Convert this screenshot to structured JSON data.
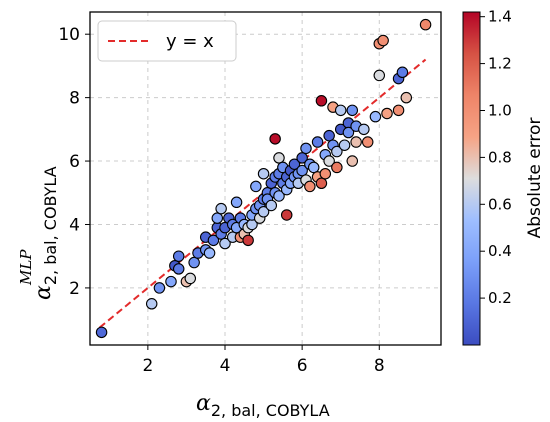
{
  "chart_data": {
    "type": "scatter",
    "xlim": [
      0.5,
      9.6
    ],
    "ylim": [
      0.2,
      10.7
    ],
    "x_ticks": [
      "2",
      "4",
      "6",
      "8"
    ],
    "y_ticks": [
      "2",
      "4",
      "6",
      "8",
      "10"
    ],
    "x_tick_values": [
      2,
      4,
      6,
      8
    ],
    "y_tick_values": [
      2,
      4,
      6,
      8,
      10
    ],
    "xlabel_main": "α",
    "xlabel_sub": "2, bal, COBYLA",
    "ylabel_main": "α",
    "ylabel_sub": "2, bal, COBYLA",
    "ylabel_sup": "MLP",
    "grid": true,
    "legend": {
      "placement": "top-left",
      "label": "y = x",
      "style": "red-dashed"
    },
    "reference_line": {
      "x": [
        0.75,
        9.2
      ],
      "y": [
        0.75,
        9.2
      ]
    },
    "colorbar": {
      "label": "Absolute error",
      "range": [
        0.0,
        1.42
      ],
      "ticks": [
        "0.2",
        "0.4",
        "0.6",
        "0.8",
        "1.0",
        "1.2",
        "1.4"
      ],
      "tick_values": [
        0.2,
        0.4,
        0.6,
        0.8,
        1.0,
        1.2,
        1.4
      ],
      "colormap": "coolwarm"
    },
    "points": [
      [
        0.8,
        0.6,
        0.12
      ],
      [
        2.1,
        1.5,
        0.6
      ],
      [
        2.3,
        2.0,
        0.3
      ],
      [
        2.6,
        2.2,
        0.4
      ],
      [
        2.7,
        2.7,
        0.05
      ],
      [
        2.8,
        3.0,
        0.2
      ],
      [
        2.8,
        2.6,
        0.2
      ],
      [
        3.0,
        2.2,
        0.8
      ],
      [
        3.1,
        2.3,
        0.7
      ],
      [
        3.2,
        2.8,
        0.3
      ],
      [
        3.3,
        3.1,
        0.2
      ],
      [
        3.5,
        3.2,
        0.3
      ],
      [
        3.6,
        3.1,
        0.5
      ],
      [
        3.5,
        3.6,
        0.1
      ],
      [
        3.7,
        3.5,
        0.2
      ],
      [
        3.8,
        3.9,
        0.1
      ],
      [
        3.8,
        4.2,
        0.4
      ],
      [
        3.9,
        3.7,
        0.2
      ],
      [
        3.9,
        4.5,
        0.6
      ],
      [
        4.0,
        3.9,
        0.1
      ],
      [
        4.0,
        3.4,
        0.6
      ],
      [
        4.1,
        4.2,
        0.1
      ],
      [
        4.2,
        3.6,
        0.6
      ],
      [
        4.2,
        4.0,
        0.2
      ],
      [
        4.3,
        4.7,
        0.4
      ],
      [
        4.3,
        3.9,
        0.4
      ],
      [
        4.4,
        3.6,
        1.0
      ],
      [
        4.4,
        4.2,
        0.2
      ],
      [
        4.5,
        3.7,
        0.8
      ],
      [
        4.5,
        4.0,
        0.5
      ],
      [
        4.6,
        3.9,
        0.7
      ],
      [
        4.6,
        3.5,
        1.3
      ],
      [
        4.7,
        4.0,
        0.6
      ],
      [
        4.7,
        4.3,
        0.4
      ],
      [
        4.8,
        4.5,
        0.3
      ],
      [
        4.8,
        5.2,
        0.4
      ],
      [
        4.9,
        4.6,
        0.3
      ],
      [
        4.9,
        4.2,
        0.7
      ],
      [
        5.0,
        4.8,
        0.2
      ],
      [
        5.0,
        5.6,
        0.6
      ],
      [
        5.0,
        4.4,
        0.6
      ],
      [
        5.1,
        5.0,
        0.2
      ],
      [
        5.1,
        4.8,
        0.3
      ],
      [
        5.2,
        5.3,
        0.1
      ],
      [
        5.2,
        4.6,
        0.6
      ],
      [
        5.3,
        6.7,
        1.4
      ],
      [
        5.3,
        5.0,
        0.3
      ],
      [
        5.3,
        5.5,
        0.2
      ],
      [
        5.4,
        5.6,
        0.2
      ],
      [
        5.4,
        4.9,
        0.5
      ],
      [
        5.4,
        6.1,
        0.7
      ],
      [
        5.5,
        5.3,
        0.2
      ],
      [
        5.5,
        5.8,
        0.3
      ],
      [
        5.6,
        5.5,
        0.1
      ],
      [
        5.6,
        5.1,
        0.5
      ],
      [
        5.6,
        4.3,
        1.3
      ],
      [
        5.7,
        5.7,
        0.05
      ],
      [
        5.7,
        5.3,
        0.4
      ],
      [
        5.8,
        5.5,
        0.3
      ],
      [
        5.8,
        5.9,
        0.1
      ],
      [
        5.9,
        5.6,
        0.3
      ],
      [
        5.9,
        5.3,
        0.6
      ],
      [
        6.0,
        6.1,
        0.1
      ],
      [
        6.0,
        5.7,
        0.3
      ],
      [
        6.1,
        5.4,
        0.7
      ],
      [
        6.1,
        6.4,
        0.3
      ],
      [
        6.2,
        5.9,
        0.3
      ],
      [
        6.2,
        5.2,
        1.0
      ],
      [
        6.3,
        5.8,
        0.5
      ],
      [
        6.4,
        5.5,
        0.9
      ],
      [
        6.4,
        6.6,
        0.2
      ],
      [
        6.5,
        5.3,
        1.2
      ],
      [
        6.5,
        7.9,
        1.4
      ],
      [
        6.6,
        6.2,
        0.4
      ],
      [
        6.6,
        5.6,
        1.0
      ],
      [
        6.7,
        6.0,
        0.7
      ],
      [
        6.7,
        6.8,
        0.1
      ],
      [
        6.8,
        6.5,
        0.3
      ],
      [
        6.8,
        7.7,
        0.9
      ],
      [
        6.9,
        5.8,
        1.1
      ],
      [
        6.9,
        6.3,
        0.6
      ],
      [
        7.0,
        7.0,
        0.05
      ],
      [
        7.0,
        7.6,
        0.6
      ],
      [
        7.1,
        6.5,
        0.6
      ],
      [
        7.2,
        7.2,
        0.1
      ],
      [
        7.2,
        6.9,
        0.3
      ],
      [
        7.3,
        7.6,
        0.3
      ],
      [
        7.3,
        6.0,
        0.8
      ],
      [
        7.4,
        6.6,
        0.8
      ],
      [
        7.4,
        7.1,
        0.3
      ],
      [
        7.6,
        7.0,
        0.6
      ],
      [
        7.7,
        6.6,
        1.0
      ],
      [
        7.9,
        7.4,
        0.5
      ],
      [
        8.0,
        8.7,
        0.7
      ],
      [
        8.0,
        9.7,
        1.0
      ],
      [
        8.1,
        9.8,
        1.0
      ],
      [
        8.2,
        7.5,
        0.9
      ],
      [
        8.5,
        7.6,
        1.0
      ],
      [
        8.5,
        8.6,
        0.1
      ],
      [
        8.6,
        8.8,
        0.2
      ],
      [
        8.7,
        8.0,
        0.8
      ],
      [
        9.2,
        10.3,
        1.05
      ]
    ]
  }
}
